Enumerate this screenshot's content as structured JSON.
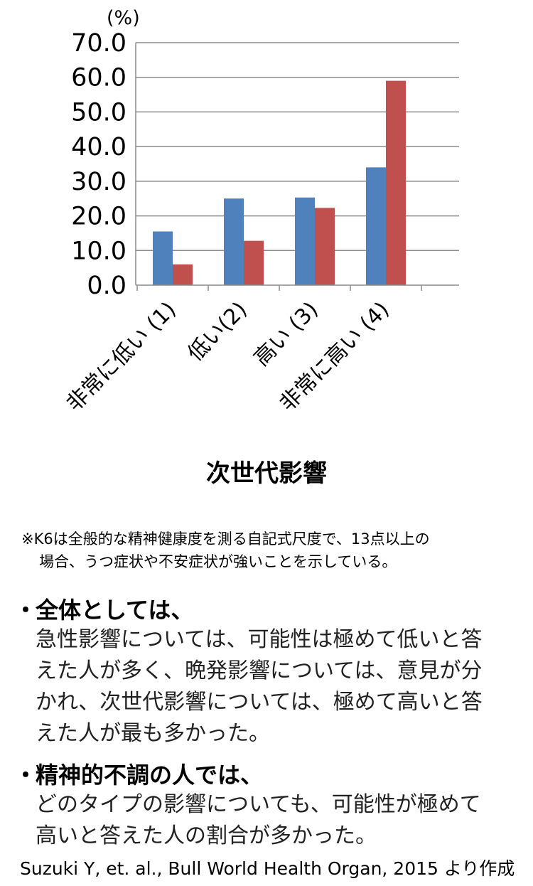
{
  "chart_data": {
    "type": "bar",
    "unit_label": "(%)",
    "xlabel": "次世代影響",
    "ylabel": "",
    "categories": [
      "非常に低い (1)",
      "低い(2)",
      "高い (3)",
      "非常に高い (4)"
    ],
    "series": [
      {
        "color": "#4F81BD",
        "values": [
          15.5,
          25.0,
          25.3,
          34.0
        ]
      },
      {
        "color": "#C0504D",
        "values": [
          6.0,
          12.8,
          22.3,
          59.0
        ]
      }
    ],
    "ylim": [
      0,
      70
    ],
    "yticks": [
      "0.0",
      "10.0",
      "20.0",
      "30.0",
      "40.0",
      "50.0",
      "60.0",
      "70.0"
    ],
    "grid": true,
    "legend": "none"
  },
  "note": {
    "line1": "※K6は全般的な精神健康度を測る自記式尺度で、13点以上の",
    "line2": "場合、うつ症状や不安症状が強いことを示している。"
  },
  "bullets": [
    {
      "marker": "・",
      "heading": "全体としては、",
      "lines": [
        "急性影響については、可能性は極めて低いと答",
        "えた人が多く、晩発影響については、意見が分",
        "かれ、次世代影響については、極めて高いと答",
        "えた人が最も多かった。"
      ]
    },
    {
      "marker": "・",
      "heading": "精神的不調の人では、",
      "lines": [
        "どのタイプの影響についても、可能性が極めて",
        "高いと答えた人の割合が多かった。"
      ]
    }
  ],
  "citation": "Suzuki Y,  et. al., Bull World Health Organ, 2015 より作成"
}
